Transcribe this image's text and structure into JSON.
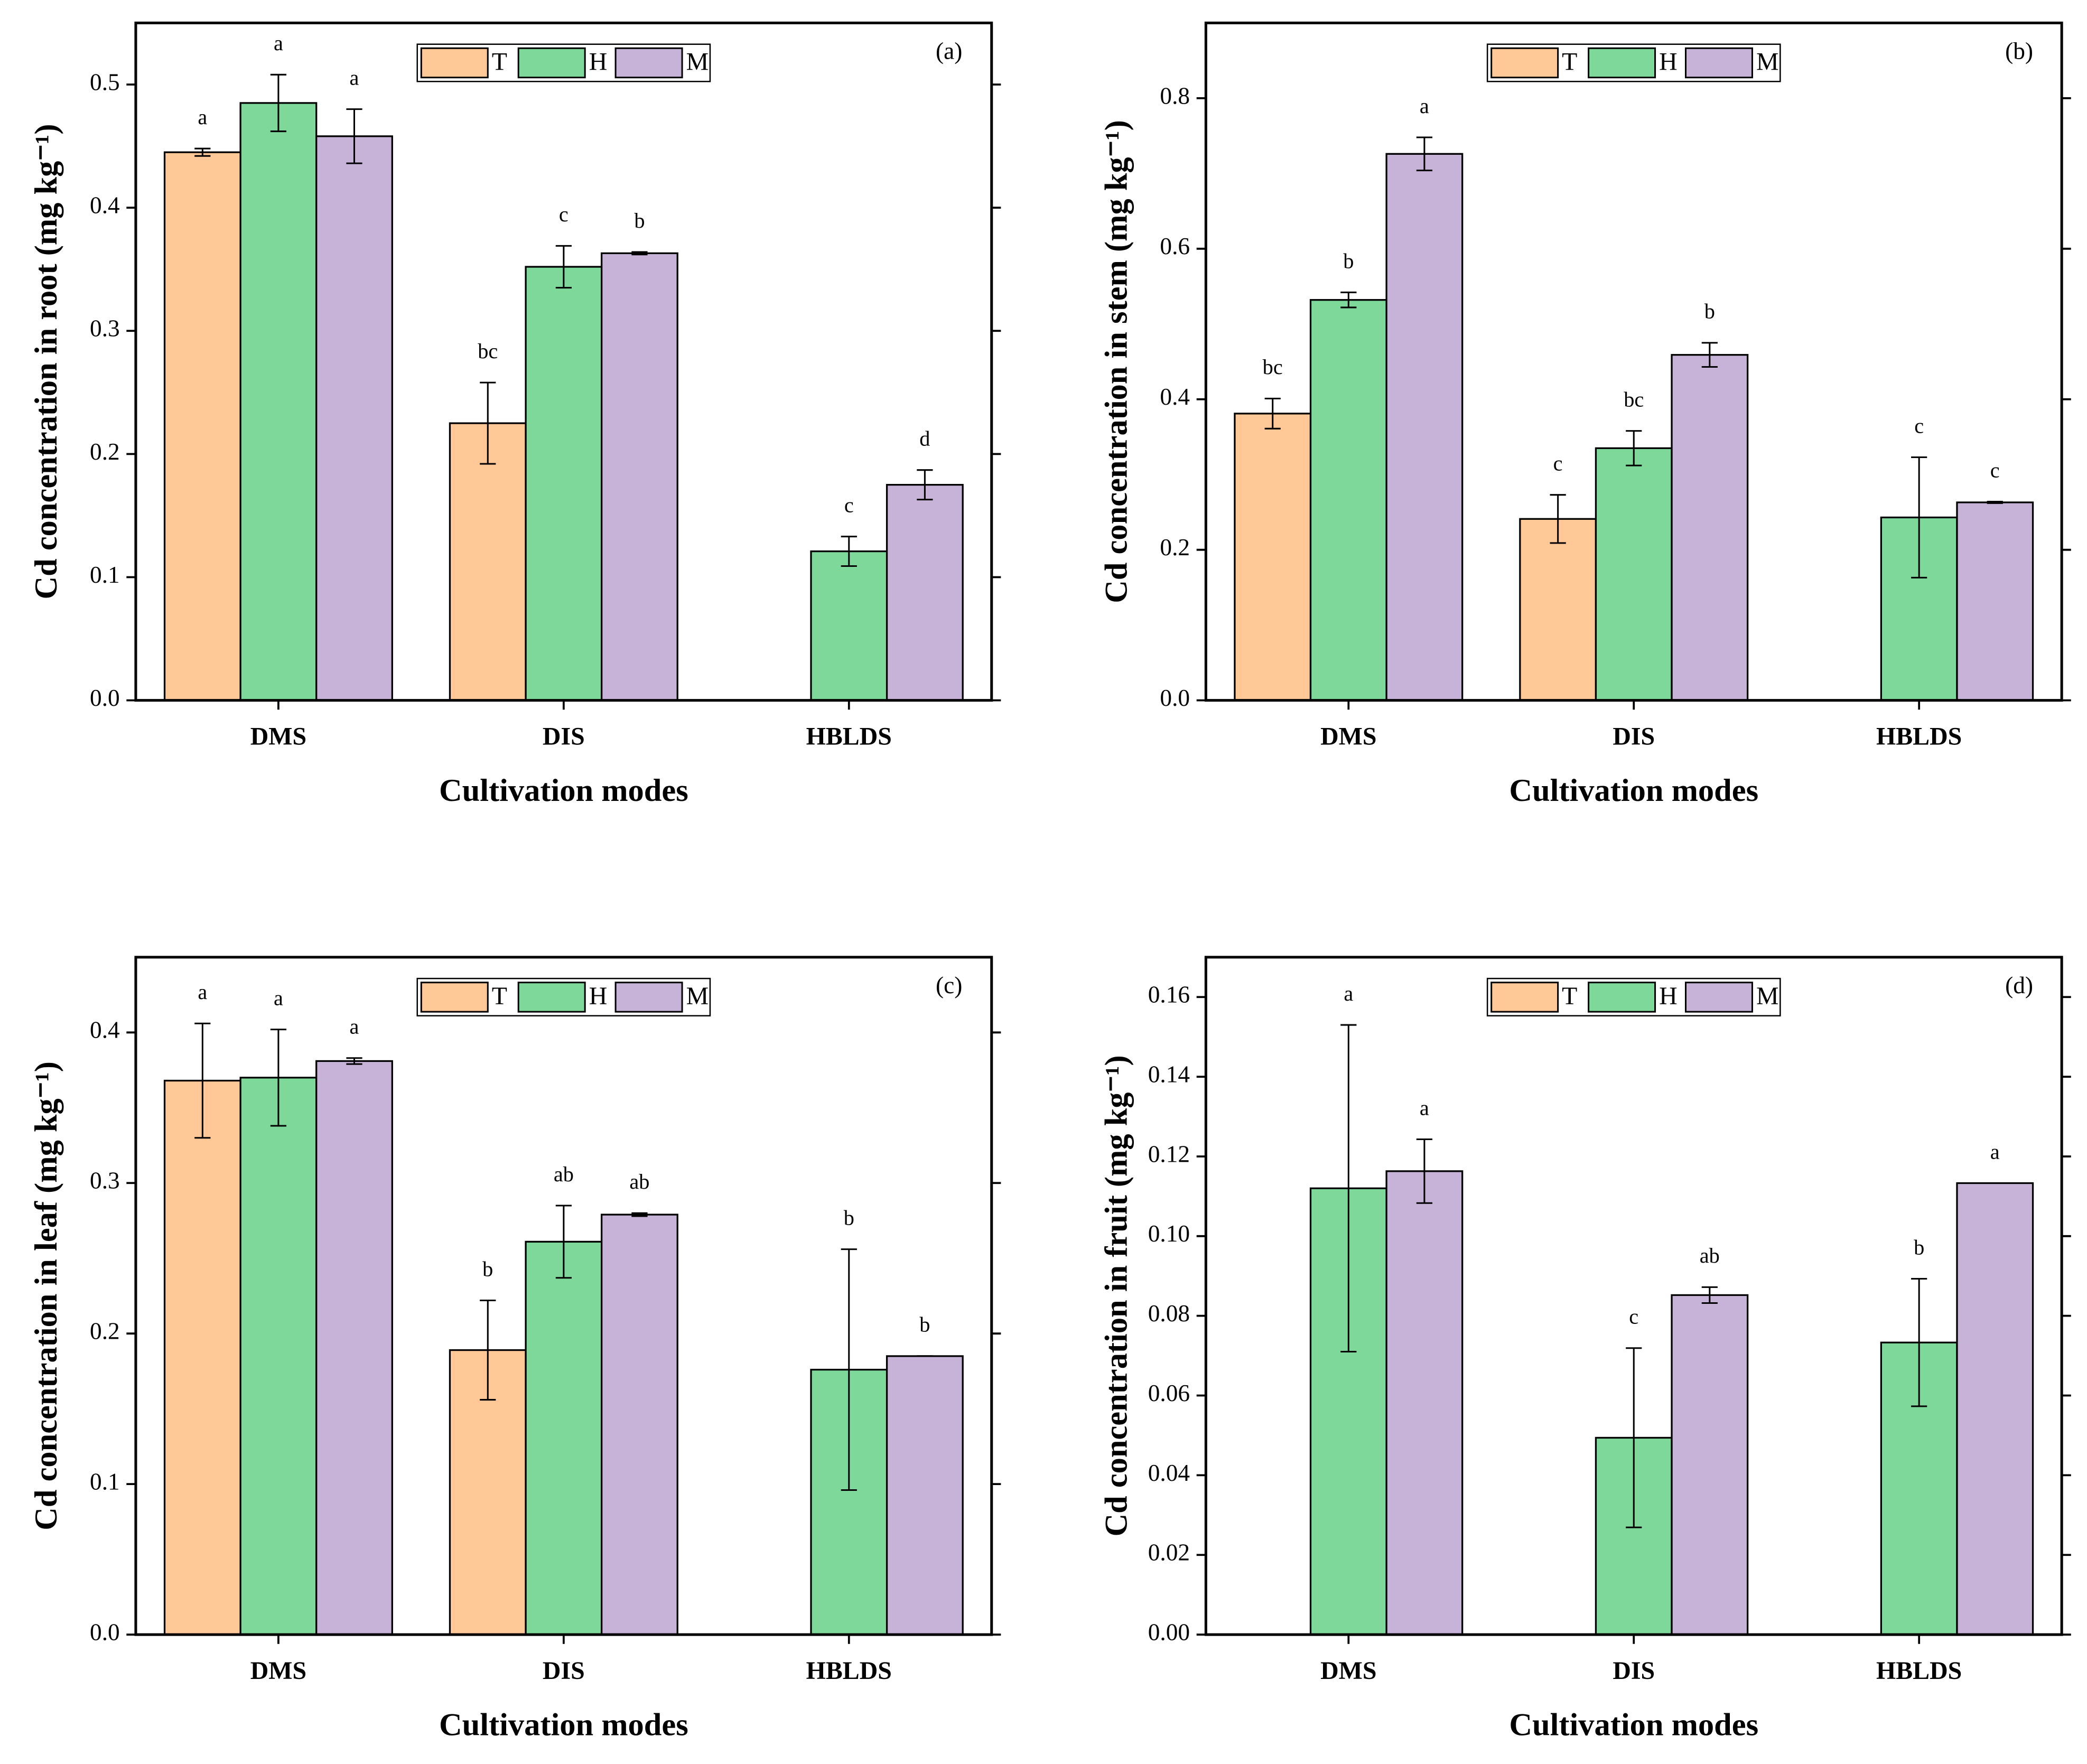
{
  "chart_data": [
    {
      "type": "bar",
      "panel_label": "(a)",
      "x_label": "Cultivation modes",
      "y_label": "Cd concentration in root (mg kg⁻¹)",
      "categories": [
        "DMS",
        "DIS",
        "HBLDS"
      ],
      "ylim": [
        0,
        0.55
      ],
      "yticks": [
        {
          "value": 0,
          "label": "0.0"
        },
        0.1,
        0.2,
        0.3,
        0.4,
        0.5
      ],
      "legend_loc": "upper center",
      "series": [
        {
          "name": "T",
          "color": "#ffc896",
          "values": [
            0.445,
            0.225,
            null
          ],
          "errors": [
            0.003,
            0.033,
            null
          ],
          "letters": [
            "a",
            "bc",
            null
          ]
        },
        {
          "name": "H",
          "color": "#7ed89a",
          "values": [
            0.485,
            0.352,
            0.121
          ],
          "errors": [
            0.023,
            0.017,
            0.012
          ],
          "letters": [
            "a",
            "c",
            "c"
          ]
        },
        {
          "name": "M",
          "color": "#c8b3d8",
          "values": [
            0.458,
            0.363,
            0.175
          ],
          "errors": [
            0.022,
            0.001,
            0.012
          ],
          "letters": [
            "a",
            "b",
            "d"
          ]
        }
      ]
    },
    {
      "type": "bar",
      "panel_label": "(b)",
      "x_label": "Cultivation modes",
      "y_label": "Cd concentration in stem (mg kg⁻¹)",
      "categories": [
        "DMS",
        "DIS",
        "HBLDS"
      ],
      "ylim": [
        0,
        0.9
      ],
      "yticks": [
        {
          "value": 0,
          "label": "0.0"
        },
        0.2,
        0.4,
        0.6,
        0.8
      ],
      "legend_loc": "upper center",
      "series": [
        {
          "name": "T",
          "color": "#ffc896",
          "values": [
            0.381,
            0.241,
            null
          ],
          "errors": [
            0.02,
            0.032,
            null
          ],
          "letters": [
            "bc",
            "c",
            null
          ]
        },
        {
          "name": "H",
          "color": "#7ed89a",
          "values": [
            0.532,
            0.335,
            0.243
          ],
          "errors": [
            0.01,
            0.023,
            0.08
          ],
          "letters": [
            "b",
            "bc",
            "c"
          ]
        },
        {
          "name": "M",
          "color": "#c8b3d8",
          "values": [
            0.726,
            0.459,
            0.263
          ],
          "errors": [
            0.022,
            0.016,
            0.001
          ],
          "letters": [
            "a",
            "b",
            "c"
          ]
        }
      ]
    },
    {
      "type": "bar",
      "panel_label": "(c)",
      "x_label": "Cultivation modes",
      "y_label": "Cd concentration in leaf (mg kg⁻¹)",
      "categories": [
        "DMS",
        "DIS",
        "HBLDS"
      ],
      "ylim": [
        0,
        0.45
      ],
      "yticks": [
        {
          "value": 0,
          "label": "0.0"
        },
        0.1,
        0.2,
        0.3,
        0.4
      ],
      "legend_loc": "upper center",
      "series": [
        {
          "name": "T",
          "color": "#ffc896",
          "values": [
            0.368,
            0.189,
            null
          ],
          "errors": [
            0.038,
            0.033,
            null
          ],
          "letters": [
            "a",
            "b",
            null
          ]
        },
        {
          "name": "H",
          "color": "#7ed89a",
          "values": [
            0.37,
            0.261,
            0.176
          ],
          "errors": [
            0.032,
            0.024,
            0.08
          ],
          "letters": [
            "a",
            "ab",
            "b"
          ]
        },
        {
          "name": "M",
          "color": "#c8b3d8",
          "values": [
            0.381,
            0.279,
            0.185
          ],
          "errors": [
            0.002,
            0.001,
            0
          ],
          "letters": [
            "a",
            "ab",
            "b"
          ]
        }
      ]
    },
    {
      "type": "bar",
      "panel_label": "(d)",
      "x_label": "Cultivation modes",
      "y_label": "Cd concentration in fruit (mg kg⁻¹)",
      "categories": [
        "DMS",
        "DIS",
        "HBLDS"
      ],
      "ylim": [
        0,
        0.17
      ],
      "yticks": [
        {
          "value": 0,
          "label": "0.00"
        },
        0.02,
        0.04,
        0.06,
        0.08,
        {
          "value": 0.1,
          "label": "0.10"
        },
        0.12,
        0.14,
        0.16
      ],
      "legend_loc": "upper center",
      "series": [
        {
          "name": "T",
          "color": "#ffc896",
          "values": [
            null,
            null,
            null
          ],
          "errors": [
            null,
            null,
            null
          ],
          "letters": [
            null,
            null,
            null
          ]
        },
        {
          "name": "H",
          "color": "#7ed89a",
          "values": [
            0.112,
            0.0494,
            0.0733
          ],
          "errors": [
            0.041,
            0.0225,
            0.016
          ],
          "letters": [
            "a",
            "c",
            "b"
          ]
        },
        {
          "name": "M",
          "color": "#c8b3d8",
          "values": [
            0.1163,
            0.0852,
            0.1133
          ],
          "errors": [
            0.008,
            0.002,
            0
          ],
          "letters": [
            "a",
            "ab",
            "a"
          ]
        }
      ]
    }
  ]
}
